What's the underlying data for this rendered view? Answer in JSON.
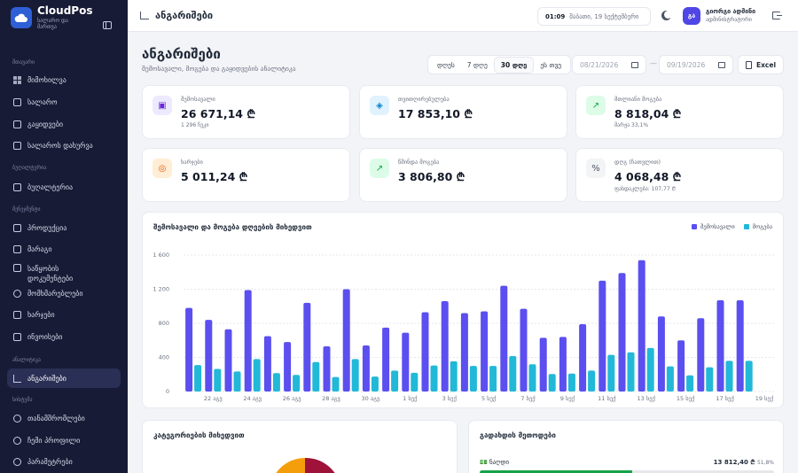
{
  "app": {
    "name": "CloudPos",
    "sub": "სალარო და მართვა"
  },
  "sidebar": {
    "sections": [
      {
        "label": "მთავარი",
        "items": [
          "მიმოხილვა",
          "სალარო",
          "გაყიდვები",
          "სალაროს დახურვა"
        ]
      },
      {
        "label": "ბუღალტერია",
        "items": [
          "ბუღალტერია"
        ]
      },
      {
        "label": "მენეჯმენტი",
        "items": [
          "პროდუქცია",
          "მარაგი",
          "საწყობის დოკუმენტები",
          "მომხმარებლები",
          "ხარჯები",
          "ინვოისები"
        ]
      },
      {
        "label": "ანალიტიკა",
        "items": [
          "ანგარიშები"
        ]
      },
      {
        "label": "სისტემა",
        "items": [
          "თანამშრომლები",
          "ჩემი პროფილი",
          "პარამეტრები"
        ]
      }
    ]
  },
  "topbar": {
    "title": "ანგარიშები",
    "time": "01:09",
    "date": "შაბათი, 19 სექტემბერი",
    "avatar": "გა",
    "user": "გიორგი ადმინი",
    "role": "ადმინისტრატორი"
  },
  "page": {
    "title": "ანგარიშები",
    "subtitle": "შემოსავალი, მოგება და გაყიდვების ანალიტიკა",
    "ranges": [
      "დღეს",
      "7 დღე",
      "30 დღე",
      "ეს თვე"
    ],
    "selected_range": "30 დღე",
    "date_from": "08/21/2026",
    "date_to": "09/19/2026",
    "export": "Excel"
  },
  "cards": [
    {
      "label": "შემოსავალი",
      "value": "26 671,14 ₾",
      "sub": "1 296 ჩეკი",
      "icon": "wallet-icon",
      "bg": "#ede9fe",
      "fg": "#6d28d9"
    },
    {
      "label": "თვითღირებულება",
      "value": "17 853,10 ₾",
      "sub": "",
      "icon": "box-icon",
      "bg": "#e0f2fe",
      "fg": "#0284c7"
    },
    {
      "label": "მთლიანი მოგება",
      "value": "8 818,04 ₾",
      "sub": "მარჟა 33,1%",
      "icon": "trend-up-icon",
      "bg": "#dcfce7",
      "fg": "#16a34a"
    },
    {
      "label": "ხარჯები",
      "value": "5 011,24 ₾",
      "sub": "",
      "icon": "coins-icon",
      "bg": "#ffedd5",
      "fg": "#ea580c"
    },
    {
      "label": "წმინდა მოგება",
      "value": "3 806,80 ₾",
      "sub": "",
      "icon": "trend-up-icon",
      "bg": "#dcfce7",
      "fg": "#16a34a"
    },
    {
      "label": "დღგ (ჩათვლით)",
      "value": "4 068,48 ₾",
      "sub": "ფასდაკლება: 107,77 ₾",
      "icon": "percent-icon",
      "bg": "#f3f4f6",
      "fg": "#4b5563"
    }
  ],
  "chart_data": {
    "type": "bar",
    "title": "შემოსავალი და მოგება დღეების მიხედვით",
    "x": [
      "21 აგვ",
      "22 აგვ",
      "23 აგვ",
      "24 აგვ",
      "25 აგვ",
      "26 აგვ",
      "27 აგვ",
      "28 აგვ",
      "29 აგვ",
      "30 აგვ",
      "31 აგვ",
      "1 სექ",
      "2 სექ",
      "3 სექ",
      "4 სექ",
      "5 სექ",
      "6 სექ",
      "7 სექ",
      "8 სექ",
      "9 სექ",
      "10 სექ",
      "11 სექ",
      "12 სექ",
      "13 სექ",
      "14 სექ",
      "15 სექ",
      "16 სექ",
      "17 სექ",
      "18 სექ",
      "19 სექ"
    ],
    "tick_labels": [
      "22 აგვ",
      "24 აგვ",
      "26 აგვ",
      "28 აგვ",
      "30 აგვ",
      "1 სექ",
      "3 სექ",
      "5 სექ",
      "7 სექ",
      "9 სექ",
      "11 სექ",
      "13 სექ",
      "15 სექ",
      "17 სექ",
      "19 სექ"
    ],
    "series": [
      {
        "name": "შემოსავალი",
        "color": "#5b4ff0",
        "values": [
          980,
          840,
          730,
          1190,
          650,
          580,
          1040,
          530,
          1200,
          540,
          750,
          690,
          930,
          1060,
          920,
          940,
          1240,
          970,
          630,
          640,
          790,
          1300,
          1390,
          1540,
          880,
          600,
          860,
          1070,
          1070,
          0
        ]
      },
      {
        "name": "მოგება",
        "color": "#22b8d8",
        "values": [
          310,
          265,
          235,
          380,
          215,
          195,
          345,
          170,
          380,
          175,
          245,
          220,
          305,
          355,
          300,
          300,
          415,
          320,
          205,
          210,
          245,
          430,
          460,
          510,
          295,
          190,
          285,
          360,
          360,
          0
        ]
      }
    ],
    "yticks": [
      0,
      400,
      800,
      1200,
      1600
    ],
    "ytick_labels": [
      "0",
      "400",
      "800",
      "1 200",
      "1 600"
    ],
    "ylim": [
      0,
      1600
    ],
    "legend": "top-right"
  },
  "bottom": {
    "category_title": "კატეგორიების მიხედვით",
    "payment_title": "გადახდის მეთოდები",
    "payment": {
      "icon": "💵",
      "label": "ნაღდი",
      "amount": "13 812,40 ₾",
      "pct": "51,8%",
      "fraction": 0.518
    }
  }
}
